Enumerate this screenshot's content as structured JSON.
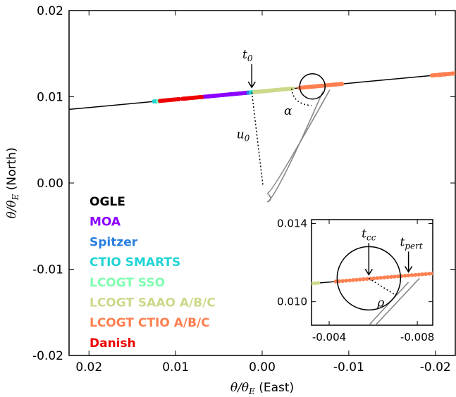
{
  "chart_data": {
    "type": "scatter",
    "title": "",
    "xlabel": "θ/θE (East)",
    "ylabel": "θ/θE (North)",
    "x_reversed": true,
    "xlim": [
      0.0223,
      -0.0223
    ],
    "ylim": [
      -0.02,
      0.02
    ],
    "x_ticks": [
      "0.02",
      "0.01",
      "0.00",
      "-0.01",
      "-0.02"
    ],
    "x_tick_values": [
      0.02,
      0.01,
      0.0,
      -0.01,
      -0.02
    ],
    "y_ticks": [
      "0.02",
      "0.01",
      "0.00",
      "-0.01",
      "-0.02"
    ],
    "y_tick_values": [
      0.02,
      0.01,
      0.0,
      -0.01,
      -0.02
    ],
    "trajectory": {
      "slope": -0.0939,
      "intercept": 0.01063
    },
    "series": [
      {
        "name": "OGLE",
        "color": "#000000",
        "x_ranges": [
          [
            -0.0205,
            -0.0212
          ]
        ]
      },
      {
        "name": "MOA",
        "color": "#8b00ff",
        "x_ranges": [
          [
            0.0068,
            0.0017
          ]
        ]
      },
      {
        "name": "Spitzer",
        "color": "#2a7fe0",
        "x_ranges": [
          [
            0.0016,
            0.0014
          ]
        ]
      },
      {
        "name": "CTIO SMARTS",
        "color": "#22d4d4",
        "x_ranges": [
          [
            0.0125,
            0.0122
          ],
          [
            0.0013,
            0.001
          ]
        ]
      },
      {
        "name": "LCOGT SSO",
        "color": "#7fffb0",
        "x_ranges": [
          [
            0.012,
            0.0116
          ]
        ]
      },
      {
        "name": "LCOGT SAAO A/B/C",
        "color": "#ccd98a",
        "x_ranges": [
          [
            0.0009,
            -0.0035
          ]
        ]
      },
      {
        "name": "LCOGT CTIO A/B/C",
        "color": "#ff7f50",
        "x_ranges": [
          [
            -0.0043,
            -0.0092
          ],
          [
            -0.0196,
            -0.0223
          ]
        ]
      },
      {
        "name": "Danish",
        "color": "#ee0000",
        "x_ranges": [
          [
            0.0118,
            0.0096
          ],
          [
            0.0092,
            0.007
          ]
        ]
      }
    ],
    "annotations": {
      "t0": "t0",
      "u0": "u0",
      "alpha": "α"
    },
    "source_circle": {
      "x": -0.0058,
      "y": 0.0112
    },
    "inset": {
      "xlim": [
        -0.0032,
        -0.0087
      ],
      "ylim": [
        0.0088,
        0.0142
      ],
      "x_ticks": [
        "-0.004",
        "-0.008"
      ],
      "x_tick_values": [
        -0.004,
        -0.008
      ],
      "y_ticks": [
        "0.014",
        "0.010"
      ],
      "y_tick_values": [
        0.014,
        0.01
      ],
      "labels": {
        "tcc": "tcc",
        "tpert": "tpert",
        "rho": "ρ"
      }
    }
  },
  "legend": [
    {
      "label": "OGLE",
      "color": "#000000"
    },
    {
      "label": "MOA",
      "color": "#8b00ff"
    },
    {
      "label": "Spitzer",
      "color": "#2a7fe0"
    },
    {
      "label": "CTIO SMARTS",
      "color": "#22d4d4"
    },
    {
      "label": "LCOGT SSO",
      "color": "#7fffb0"
    },
    {
      "label": "LCOGT SAAO A/B/C",
      "color": "#ccd98a"
    },
    {
      "label": "LCOGT CTIO A/B/C",
      "color": "#ff7f50"
    },
    {
      "label": "Danish",
      "color": "#ee0000"
    }
  ]
}
